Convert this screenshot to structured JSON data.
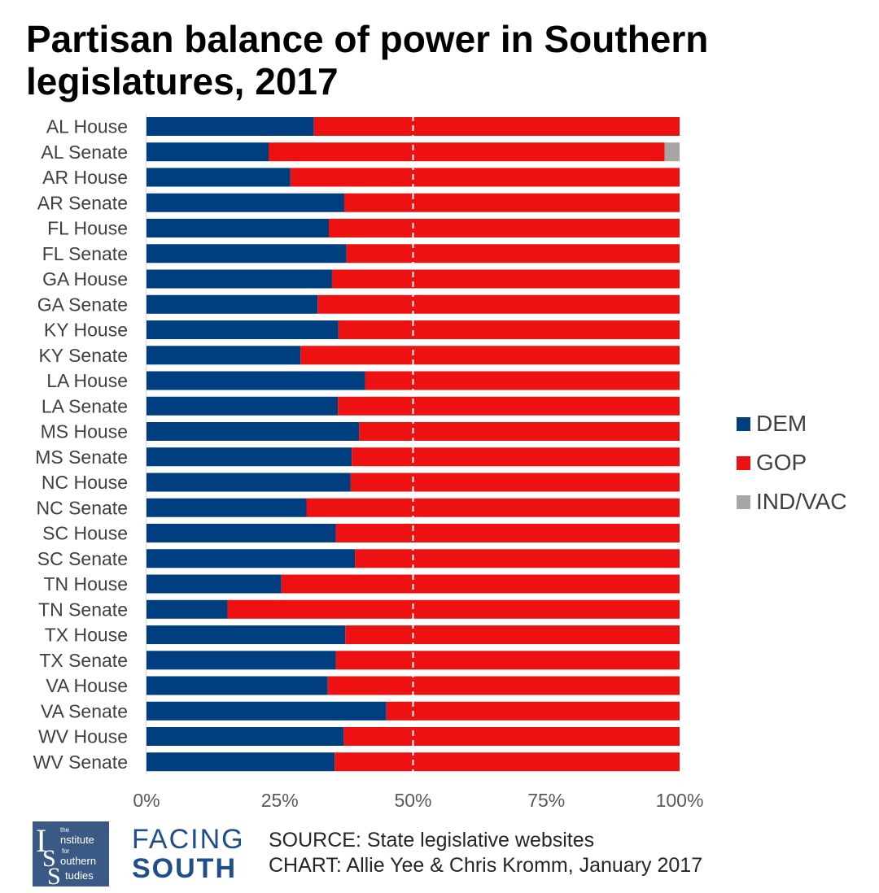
{
  "title": "Partisan balance of power in Southern legislatures, 2017",
  "chart_data": {
    "type": "bar",
    "orientation": "horizontal",
    "stacked": true,
    "percent_stacked": true,
    "categories": [
      "AL House",
      "AL Senate",
      "AR House",
      "AR Senate",
      "FL House",
      "FL Senate",
      "GA House",
      "GA Senate",
      "KY House",
      "KY Senate",
      "LA House",
      "LA Senate",
      "MS House",
      "MS Senate",
      "NC House",
      "NC Senate",
      "SC House",
      "SC Senate",
      "TN House",
      "TN Senate",
      "TX House",
      "TX Senate",
      "VA House",
      "VA Senate",
      "WV House",
      "WV Senate"
    ],
    "series": [
      {
        "name": "DEM",
        "color": "#003f7f",
        "values": [
          31.4,
          22.9,
          27.0,
          37.1,
          34.2,
          37.5,
          34.8,
          32.1,
          36.0,
          28.9,
          41.0,
          35.9,
          39.9,
          38.5,
          38.3,
          30.0,
          35.5,
          39.1,
          25.3,
          15.2,
          37.3,
          35.5,
          34.0,
          45.0,
          37.0,
          35.3
        ]
      },
      {
        "name": "GOP",
        "color": "#ee1111",
        "values": [
          68.6,
          74.3,
          73.0,
          62.9,
          65.8,
          62.5,
          65.2,
          67.9,
          64.0,
          71.1,
          59.0,
          64.1,
          60.1,
          61.5,
          61.7,
          70.0,
          64.5,
          60.9,
          74.7,
          84.8,
          62.7,
          64.5,
          66.0,
          55.0,
          63.0,
          64.7
        ]
      },
      {
        "name": "IND/VAC",
        "color": "#a6a6a6",
        "values": [
          0,
          2.8,
          0,
          0,
          0,
          0,
          0,
          0,
          0,
          0,
          0,
          0,
          0,
          0,
          0,
          0,
          0,
          0,
          0,
          0,
          0,
          0,
          0,
          0,
          0,
          0
        ]
      }
    ],
    "xlim": [
      0,
      100
    ],
    "x_ticks": [
      "0%",
      "25%",
      "50%",
      "75%",
      "100%"
    ],
    "x_tick_values": [
      0,
      25,
      50,
      75,
      100
    ],
    "reference_line": {
      "value": 50,
      "style": "dashed",
      "color": "#ffffff"
    },
    "grid": false,
    "legend_placement": "right"
  },
  "footer": {
    "logo": {
      "small_the": "the",
      "letter_i": "I",
      "word_nstitute": "nstitute",
      "word_for": "for",
      "letter_s1": "S",
      "word_outhern": "outhern",
      "letter_s2": "S",
      "word_tudies": "tudies"
    },
    "brand_top": "FACING",
    "brand_bottom": "SOUTH",
    "source": "SOURCE: State legislative websites",
    "credit": "CHART: Allie Yee & Chris Kromm, January 2017"
  }
}
